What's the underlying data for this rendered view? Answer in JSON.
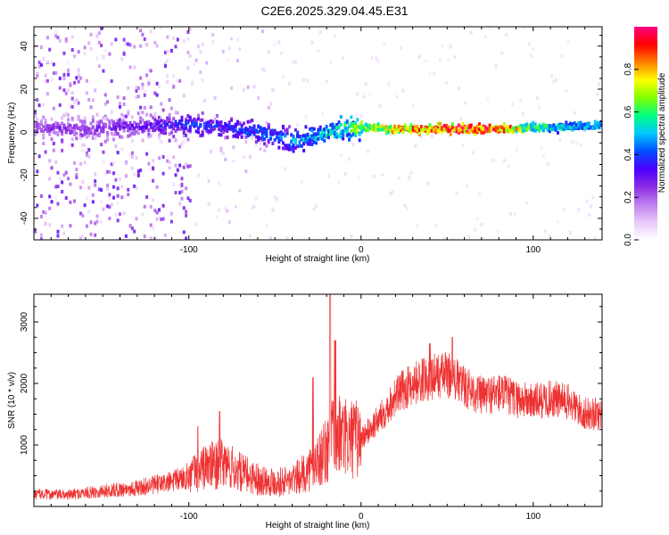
{
  "title": "C2E6.2025.329.04.45.E31",
  "colors": {
    "snr_line": "#ee3333",
    "axis": "#000000",
    "colormap": [
      "#ffffff",
      "#e8c8f8",
      "#c080f0",
      "#8a2be2",
      "#4b00ff",
      "#0050ff",
      "#00c8ff",
      "#00ff80",
      "#80ff00",
      "#ffff00",
      "#ff8000",
      "#ff0000",
      "#ff0080"
    ]
  },
  "chart_data": [
    {
      "type": "heatmap",
      "title": "",
      "xlabel": "Height of straight line (km)",
      "ylabel": "Frequency (Hz)",
      "xlim": [
        -190,
        140
      ],
      "ylim": [
        -50,
        49
      ],
      "xticks": [
        -100,
        0,
        100
      ],
      "yticks": [
        -40,
        -20,
        0,
        20,
        40
      ],
      "colorbar": {
        "label": "Normalized spectral amplitude",
        "range": [
          0,
          1
        ],
        "ticks": [
          0.0,
          0.2,
          0.4,
          0.6,
          0.8
        ]
      },
      "ridge": {
        "x": [
          -190,
          -150,
          -120,
          -100,
          -80,
          -60,
          -50,
          -40,
          -30,
          -20,
          -10,
          0,
          20,
          40,
          60,
          80,
          100,
          120,
          140
        ],
        "frequency": [
          2,
          2,
          3,
          4,
          2,
          0,
          -2,
          -4,
          -3,
          0,
          2,
          2,
          1.5,
          1.5,
          1.5,
          1.5,
          2,
          2.5,
          3
        ],
        "amplitude": [
          0.25,
          0.28,
          0.32,
          0.4,
          0.38,
          0.42,
          0.45,
          0.48,
          0.5,
          0.55,
          0.6,
          0.7,
          0.8,
          0.9,
          0.95,
          0.92,
          0.6,
          0.5,
          0.5
        ]
      }
    },
    {
      "type": "line",
      "title": "",
      "xlabel": "Height of straight line (km)",
      "ylabel": "SNR (10 * v/v)",
      "xlim": [
        -190,
        140
      ],
      "ylim": [
        0,
        3450
      ],
      "xticks": [
        -100,
        0,
        100
      ],
      "yticks": [
        1000,
        2000,
        3000
      ],
      "series": [
        {
          "name": "SNR",
          "x": [
            -190,
            -170,
            -150,
            -130,
            -110,
            -100,
            -90,
            -80,
            -70,
            -60,
            -50,
            -40,
            -30,
            -20,
            -15,
            -10,
            0,
            10,
            20,
            30,
            40,
            50,
            60,
            70,
            80,
            90,
            100,
            110,
            120,
            130,
            140
          ],
          "y": [
            200,
            190,
            250,
            300,
            400,
            500,
            650,
            700,
            550,
            450,
            400,
            420,
            600,
            900,
            1200,
            1100,
            1100,
            1400,
            1800,
            2000,
            2100,
            2150,
            1950,
            1800,
            1850,
            1750,
            1700,
            1750,
            1700,
            1500,
            1500
          ],
          "peaks": [
            [
              -95,
              1300
            ],
            [
              -82,
              1550
            ],
            [
              -28,
              2100
            ],
            [
              -18,
              3450
            ],
            [
              -15,
              2700
            ],
            [
              40,
              2650
            ],
            [
              53,
              2750
            ]
          ]
        }
      ]
    }
  ]
}
